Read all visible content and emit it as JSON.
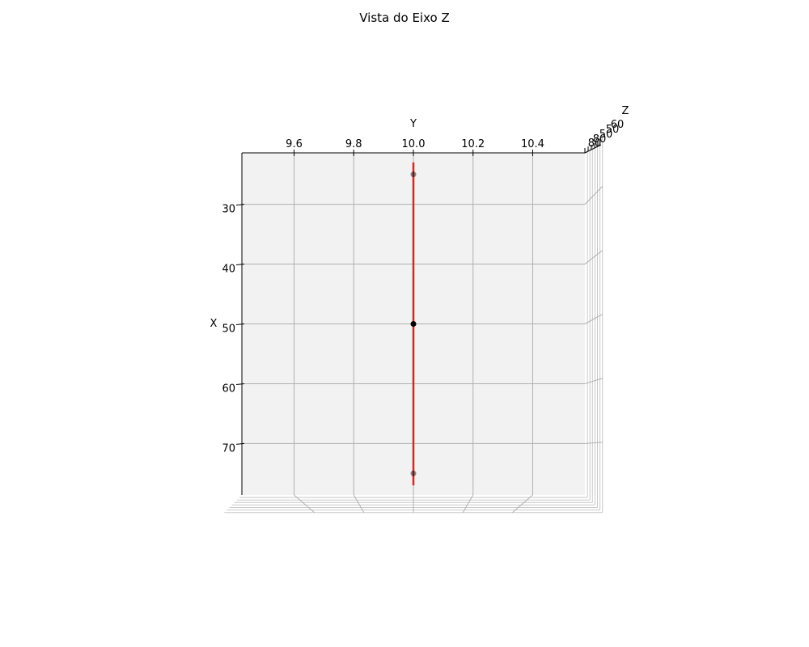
{
  "chart_data": {
    "type": "line",
    "projection": "3d",
    "title": "Vista do Eixo Z",
    "xlabel": "X",
    "ylabel": "Y",
    "zlabel": "Z",
    "x_ticks": [
      30,
      40,
      50,
      60,
      70
    ],
    "y_ticks": [
      9.6,
      9.8,
      10.0,
      10.2,
      10.4
    ],
    "z_ticks": [
      50,
      60,
      80
    ],
    "xlim": [
      21.4,
      78.6
    ],
    "ylim": [
      9.425,
      10.575
    ],
    "grid": true,
    "series": [
      {
        "kind": "line",
        "color": "#d62728",
        "points": [
          {
            "x": 23,
            "y": 10.0
          },
          {
            "x": 77,
            "y": 10.0
          }
        ]
      },
      {
        "kind": "scatter",
        "color": "#000000",
        "points": [
          {
            "x": 25,
            "y": 10.0,
            "alpha": 0.45
          },
          {
            "x": 50,
            "y": 10.0,
            "alpha": 1.0
          },
          {
            "x": 75,
            "y": 10.0,
            "alpha": 0.45
          }
        ]
      }
    ]
  }
}
